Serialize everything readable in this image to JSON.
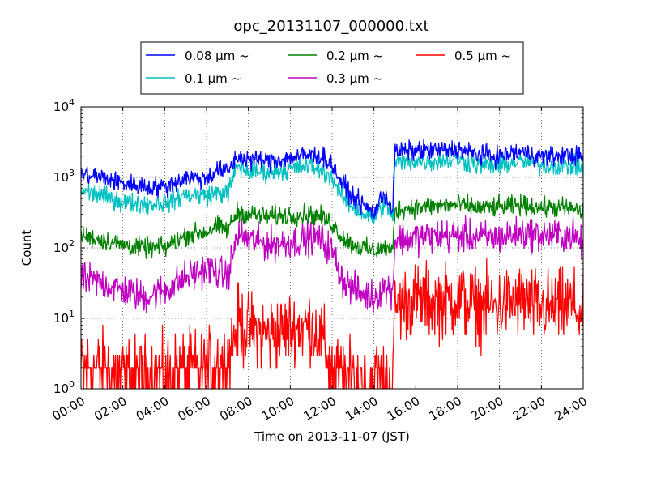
{
  "chart_data": {
    "type": "line",
    "title": "opc_20131107_000000.txt",
    "xlabel": "Time on 2013-11-07 (JST)",
    "ylabel": "Count",
    "xlim": [
      "00:00",
      "24:00"
    ],
    "ylim": [
      1,
      10000
    ],
    "y_scale": "log",
    "grid": true,
    "legend_position": "top-center",
    "x_ticks": [
      "00:00",
      "02:00",
      "04:00",
      "06:00",
      "08:00",
      "10:00",
      "12:00",
      "14:00",
      "16:00",
      "18:00",
      "20:00",
      "22:00",
      "24:00"
    ],
    "y_ticks": [
      {
        "base": "10",
        "exp": "0",
        "value": 1
      },
      {
        "base": "10",
        "exp": "1",
        "value": 10
      },
      {
        "base": "10",
        "exp": "2",
        "value": 100
      },
      {
        "base": "10",
        "exp": "3",
        "value": 1000
      },
      {
        "base": "10",
        "exp": "4",
        "value": 10000
      }
    ],
    "x_hours": [
      0,
      1,
      2,
      3,
      4,
      5,
      6,
      6.5,
      7,
      7.5,
      8,
      9,
      10,
      11,
      11.5,
      12,
      12.5,
      13,
      13.5,
      14,
      14.5,
      14.9,
      15,
      16,
      17,
      18,
      19,
      20,
      21,
      22,
      23,
      23.5,
      24
    ],
    "series": [
      {
        "name": "0.08 μm ~",
        "color": "#0000ff",
        "noise": 0.12,
        "values": [
          1100,
          1000,
          820,
          750,
          720,
          1000,
          950,
          1300,
          1200,
          2000,
          1800,
          1700,
          1900,
          2100,
          2000,
          1500,
          800,
          520,
          400,
          320,
          600,
          350,
          2300,
          2400,
          2400,
          2500,
          2100,
          2000,
          2300,
          2000,
          2000,
          2100,
          1900
        ]
      },
      {
        "name": "0.1 μm ~",
        "color": "#00c0c0",
        "noise": 0.12,
        "values": [
          650,
          550,
          450,
          420,
          430,
          560,
          560,
          600,
          600,
          1500,
          1200,
          1200,
          1300,
          1500,
          1250,
          1000,
          520,
          380,
          300,
          270,
          420,
          280,
          1600,
          1700,
          1700,
          1800,
          1500,
          1450,
          1700,
          1500,
          1450,
          1450,
          1350
        ]
      },
      {
        "name": "0.2 μm ~",
        "color": "#008000",
        "noise": 0.12,
        "values": [
          150,
          130,
          110,
          100,
          100,
          150,
          170,
          200,
          180,
          330,
          300,
          280,
          290,
          300,
          270,
          220,
          140,
          110,
          100,
          90,
          100,
          90,
          350,
          380,
          390,
          410,
          370,
          380,
          400,
          380,
          370,
          360,
          310
        ]
      },
      {
        "name": "0.3 μm ~",
        "color": "#c000c0",
        "noise": 0.2,
        "values": [
          36,
          32,
          25,
          20,
          25,
          38,
          50,
          45,
          40,
          160,
          130,
          110,
          120,
          140,
          130,
          90,
          35,
          26,
          22,
          20,
          28,
          25,
          130,
          140,
          150,
          150,
          140,
          140,
          160,
          150,
          150,
          150,
          110
        ]
      },
      {
        "name": "0.5 μm ~",
        "color": "#ff0000",
        "noise": 0.45,
        "values": [
          2,
          2,
          1.6,
          1.6,
          1.6,
          2,
          2,
          2.5,
          2.5,
          9,
          7,
          6,
          7,
          8,
          5,
          2,
          1.5,
          1.4,
          1.4,
          1.4,
          1.4,
          1.4,
          16,
          18,
          17,
          19,
          15,
          15,
          18,
          14,
          14,
          16,
          10
        ]
      }
    ]
  }
}
